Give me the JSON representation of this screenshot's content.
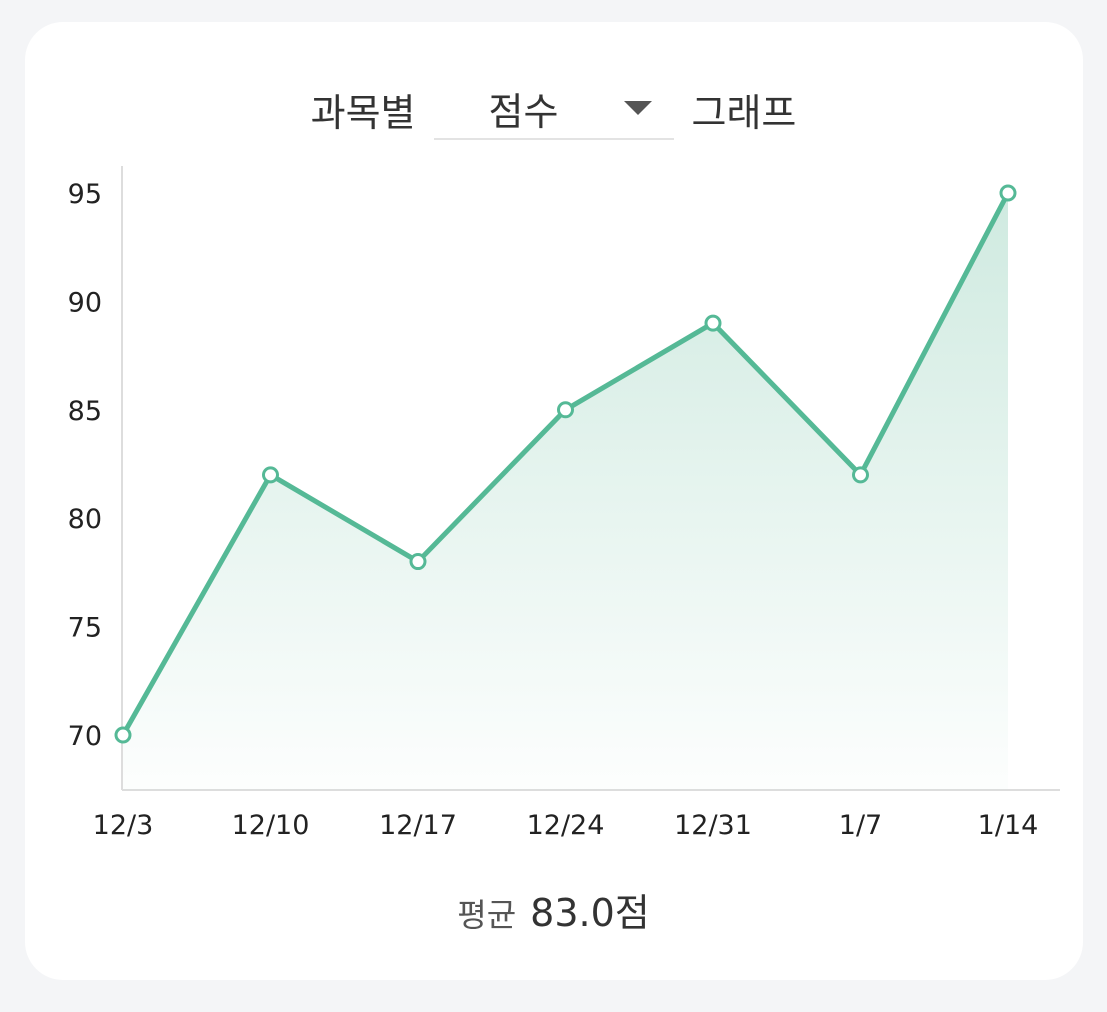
{
  "header": {
    "prefix": "과목별",
    "select_value": "점수",
    "suffix": "그래프"
  },
  "summary": {
    "label": "평균",
    "value": "83.0점"
  },
  "colors": {
    "line": "#55b996",
    "fill": "#cfeae0",
    "axis": "#dddddd"
  },
  "chart_data": {
    "type": "area",
    "categories": [
      "12/3",
      "12/10",
      "12/17",
      "12/24",
      "12/31",
      "1/7",
      "1/14"
    ],
    "series": [
      {
        "values": [
          70,
          82,
          78,
          85,
          89,
          82,
          95
        ]
      }
    ],
    "yticks": [
      70,
      75,
      80,
      85,
      90,
      95
    ],
    "ylim": [
      67.5,
      96.2
    ],
    "title": "",
    "xlabel": "",
    "ylabel": "",
    "grid": false,
    "markers": true
  }
}
